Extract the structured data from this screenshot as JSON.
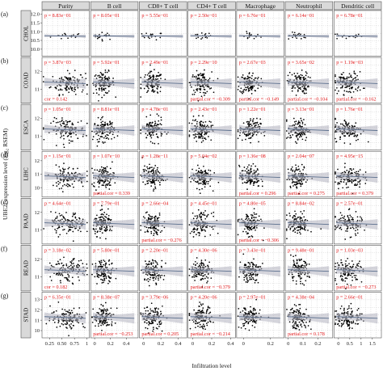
{
  "chart_data": {
    "type": "scatter",
    "xlabel": "Infiltration level",
    "ylabel": "UBE2I expression level (log₂ RSEM)",
    "columns": [
      "Purity",
      "B cell",
      "CD8+ T cell",
      "CD4+ T cell",
      "Macrophage",
      "Neutrophil",
      "Dendritic cell"
    ],
    "x_ticks": [
      [
        "0.25",
        "0.50",
        "0.75",
        "1"
      ],
      [
        "0",
        "0.2",
        "0.4"
      ],
      [
        "0",
        "0.2",
        "0.4"
      ],
      [
        "0",
        "0.2",
        "0.4"
      ],
      [
        "0",
        "0.2"
      ],
      [
        "0",
        "0.1",
        "0.2"
      ],
      [
        "0",
        "0.5",
        "1",
        "1.5"
      ]
    ],
    "x_tick_values": [
      [
        0.25,
        0.5,
        0.75,
        1.0
      ],
      [
        0,
        0.2,
        0.4
      ],
      [
        0,
        0.2,
        0.4
      ],
      [
        0,
        0.2,
        0.4
      ],
      [
        0,
        0.2
      ],
      [
        0,
        0.1,
        0.2
      ],
      [
        0,
        0.5,
        1.0,
        1.5
      ]
    ],
    "xlim": [
      [
        0.1,
        1.05
      ],
      [
        -0.05,
        0.55
      ],
      [
        -0.05,
        0.5
      ],
      [
        -0.05,
        0.45
      ],
      [
        -0.05,
        0.3
      ],
      [
        -0.02,
        0.3
      ],
      [
        -0.2,
        1.9
      ]
    ],
    "rows": [
      {
        "letter": "(a)",
        "cancer": "CHOL",
        "y_ticks": [
          "10.0",
          "10.5",
          "11.0",
          "11.5",
          "12.0"
        ],
        "y_tick_values": [
          10.0,
          10.5,
          11.0,
          11.5,
          12.0
        ],
        "ylim": [
          9.6,
          12.2
        ],
        "stats": [
          {
            "p": "p = 8.83e−01",
            "cor": ""
          },
          {
            "p": "p = 8.05e−01",
            "cor": ""
          },
          {
            "p": "p = 5.55e−01",
            "cor": ""
          },
          {
            "p": "p = 2.50e−01",
            "cor": ""
          },
          {
            "p": "p = 6.76e−01",
            "cor": ""
          },
          {
            "p": "p = 6.14e−01",
            "cor": ""
          },
          {
            "p": "p = 6.78e−01",
            "cor": ""
          }
        ]
      },
      {
        "letter": "(b)",
        "cancer": "COAD",
        "y_ticks": [
          "11",
          "12"
        ],
        "y_tick_values": [
          11,
          12
        ],
        "ylim": [
          10.2,
          12.8
        ],
        "stats": [
          {
            "p": "p = 3.87e−03",
            "cor": "cor = 0.142"
          },
          {
            "p": "p = 5.92e−01",
            "cor": ""
          },
          {
            "p": "p = 2.49e−01",
            "cor": ""
          },
          {
            "p": "p = 2.29e−10",
            "cor": "partial.cor = −0.309"
          },
          {
            "p": "p = 2.67e−03",
            "cor": "partial.cor = −0.149"
          },
          {
            "p": "p = 3.65e−02",
            "cor": "partial.cor = −0.104"
          },
          {
            "p": "p = 1.19e−03",
            "cor": "partial.cor = −0.162"
          }
        ]
      },
      {
        "letter": "(c)",
        "cancer": "ESCA",
        "y_ticks": [
          "11",
          "12"
        ],
        "y_tick_values": [
          11,
          12
        ],
        "ylim": [
          10.2,
          12.8
        ],
        "stats": [
          {
            "p": "p = 1.05e−01",
            "cor": ""
          },
          {
            "p": "p = 8.81e−01",
            "cor": ""
          },
          {
            "p": "p = 4.78e−01",
            "cor": ""
          },
          {
            "p": "p = 2.43e−01",
            "cor": ""
          },
          {
            "p": "p = 1.22e−01",
            "cor": ""
          },
          {
            "p": "p = 3.13e−01",
            "cor": ""
          },
          {
            "p": "p = 1.76e−01",
            "cor": ""
          }
        ]
      },
      {
        "letter": "(d)",
        "cancer": "LIHC",
        "y_ticks": [
          "10",
          "11",
          "12"
        ],
        "y_tick_values": [
          10,
          11,
          12
        ],
        "ylim": [
          9.3,
          12.7
        ],
        "stats": [
          {
            "p": "p = 1.15e−01",
            "cor": ""
          },
          {
            "p": "p = 1.07e−10",
            "cor": "partial.cor = 0.339"
          },
          {
            "p": "p = 1.28e−11",
            "cor": ""
          },
          {
            "p": "p = 5.04e−02",
            "cor": ""
          },
          {
            "p": "p = 1.36e−08",
            "cor": "partial.cor = 0.296"
          },
          {
            "p": "p = 2.04e−07",
            "cor": "partial.cor = 0.275"
          },
          {
            "p": "p = 4.95e−15",
            "cor": "partial.cor = 0.379"
          }
        ]
      },
      {
        "letter": "(e)",
        "cancer": "PAAD",
        "y_ticks": [
          "11",
          "12"
        ],
        "y_tick_values": [
          11,
          12
        ],
        "ylim": [
          10.2,
          12.8
        ],
        "stats": [
          {
            "p": "p = 4.64e−01",
            "cor": ""
          },
          {
            "p": "p = 7.79e−01",
            "cor": ""
          },
          {
            "p": "p = 2.66e−04",
            "cor": "partial.cor = −0.276"
          },
          {
            "p": "p = 4.45e−01",
            "cor": ""
          },
          {
            "p": "p = 4.80e−05",
            "cor": "partial.cor = −0.306"
          },
          {
            "p": "p = 8.84e−02",
            "cor": ""
          },
          {
            "p": "p = 2.57e−01",
            "cor": ""
          }
        ]
      },
      {
        "letter": "(f)",
        "cancer": "READ",
        "y_ticks": [
          "11",
          "12"
        ],
        "y_tick_values": [
          11,
          12
        ],
        "ylim": [
          10.2,
          12.8
        ],
        "stats": [
          {
            "p": "p = 3.18e−02",
            "cor": "cor = 0.182"
          },
          {
            "p": "p = 5.80e−01",
            "cor": ""
          },
          {
            "p": "p = 2.20e−01",
            "cor": ""
          },
          {
            "p": "p = 4.30e−06",
            "cor": "partial.cor = −0.379"
          },
          {
            "p": "p = 3.43e−01",
            "cor": ""
          },
          {
            "p": "p = 9.48e−01",
            "cor": ""
          },
          {
            "p": "p = 1.03e−03",
            "cor": "partial.cor = −0.273"
          }
        ]
      },
      {
        "letter": "(g)",
        "cancer": "STAD",
        "y_ticks": [
          "10",
          "11",
          "12",
          "13"
        ],
        "y_tick_values": [
          10,
          11,
          12,
          13
        ],
        "ylim": [
          9.3,
          13.7
        ],
        "stats": [
          {
            "p": "p = 6.35e−01",
            "cor": ""
          },
          {
            "p": "p = 8.38e−07",
            "cor": "partial.cor = −0.253"
          },
          {
            "p": "p = 3.79e−06",
            "cor": "partial.cor = 0.205"
          },
          {
            "p": "p = 4.20e−06",
            "cor": "partial.cor = −0.214"
          },
          {
            "p": "p = 2.97e−01",
            "cor": ""
          },
          {
            "p": "p = 4.38e−04",
            "cor": "partial.cor = 0.178"
          },
          {
            "p": "p = 2.66e−01",
            "cor": ""
          }
        ]
      }
    ],
    "grid": true,
    "point_color": "#000000",
    "fit_line_color": "#5a6e8c",
    "band_color": "#b3b3bf",
    "stat_color": "#e31a1c"
  }
}
